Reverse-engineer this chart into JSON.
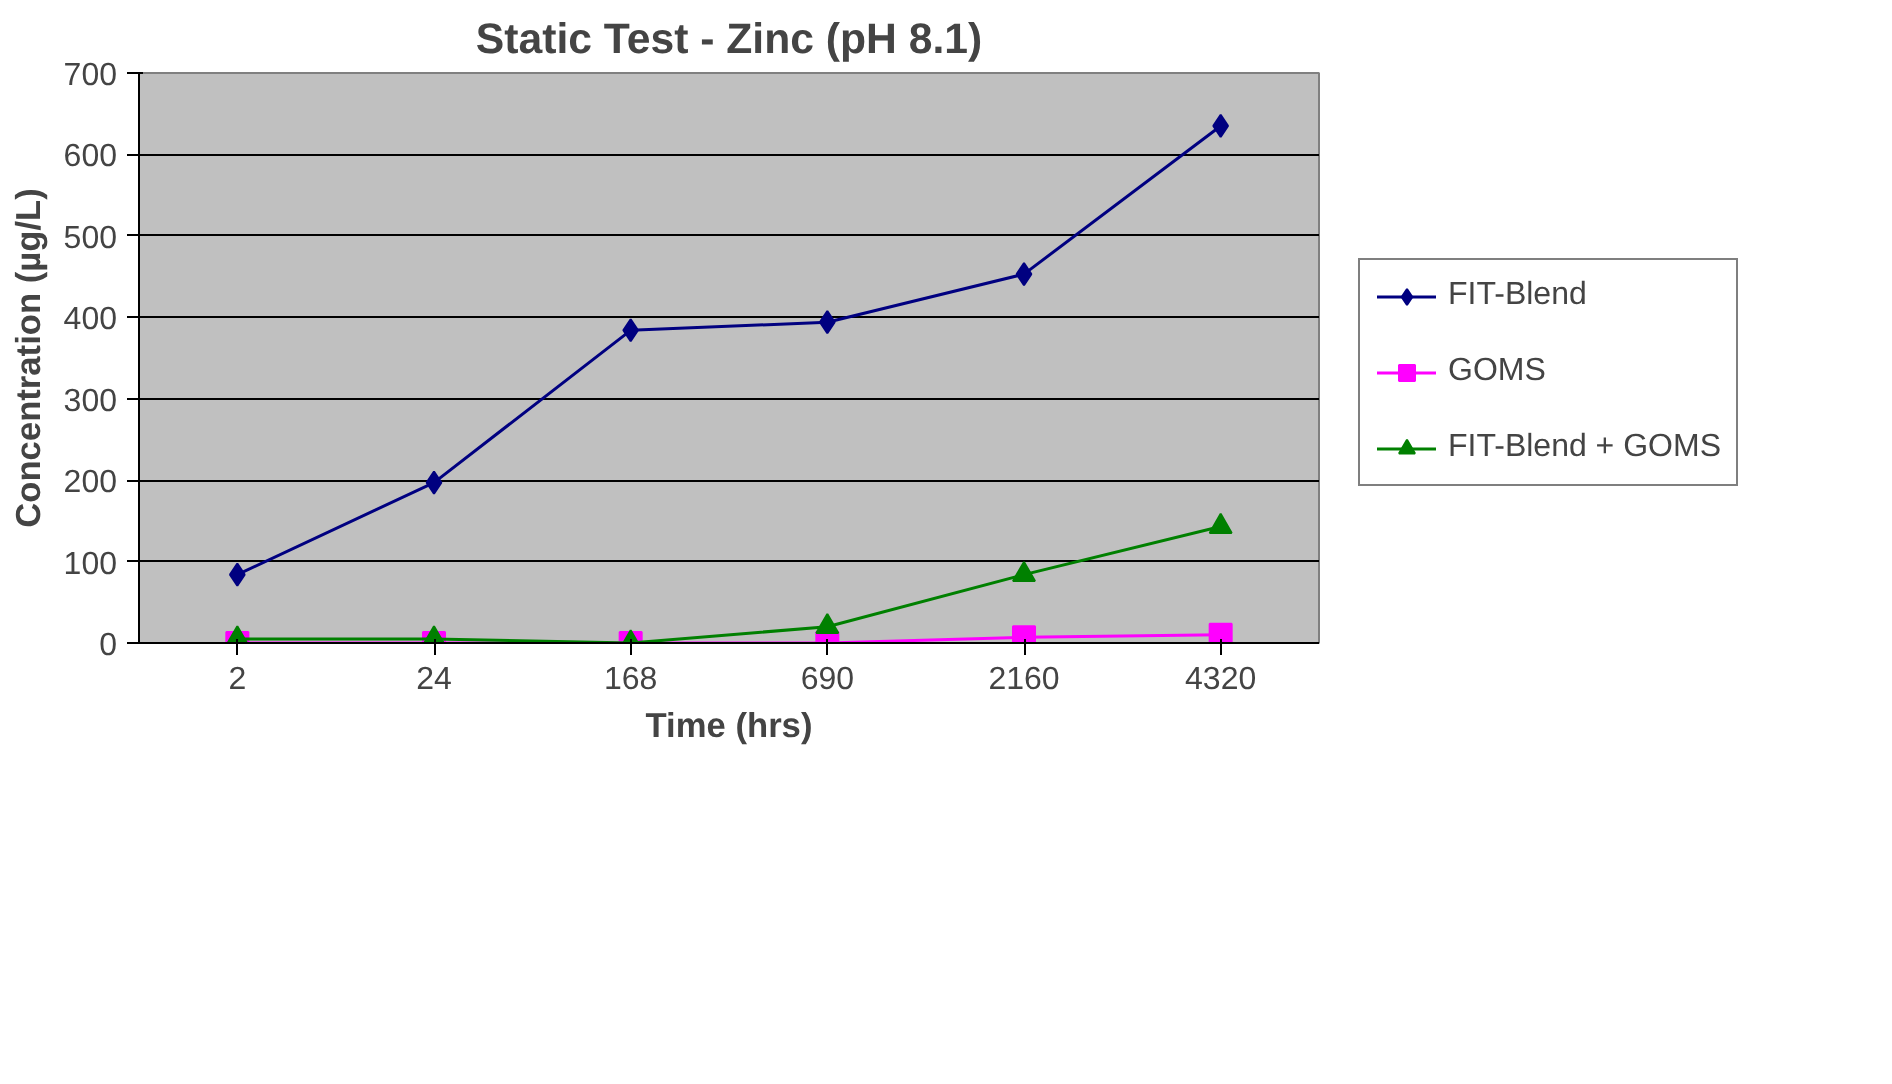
{
  "chart_data": {
    "type": "line",
    "title": "Static Test - Zinc (pH 8.1)",
    "xlabel": "Time (hrs)",
    "ylabel": "Concentration (µg/L)",
    "categories": [
      "2",
      "24",
      "168",
      "690",
      "2160",
      "4320"
    ],
    "series": [
      {
        "name": "FIT-Blend",
        "color": "#000080",
        "marker": "diamond",
        "values": [
          84,
          197,
          384,
          394,
          453,
          635
        ]
      },
      {
        "name": "GOMS",
        "color": "#ff00ff",
        "marker": "square",
        "values": [
          0,
          0,
          0,
          0,
          7,
          10
        ]
      },
      {
        "name": "FIT-Blend + GOMS",
        "color": "#008000",
        "marker": "triangle",
        "values": [
          5,
          5,
          0,
          20,
          84,
          143
        ]
      }
    ],
    "ylim": [
      0,
      700
    ],
    "yticks": [
      0,
      100,
      200,
      300,
      400,
      500,
      600,
      700
    ],
    "grid": "y",
    "legend": "right"
  }
}
